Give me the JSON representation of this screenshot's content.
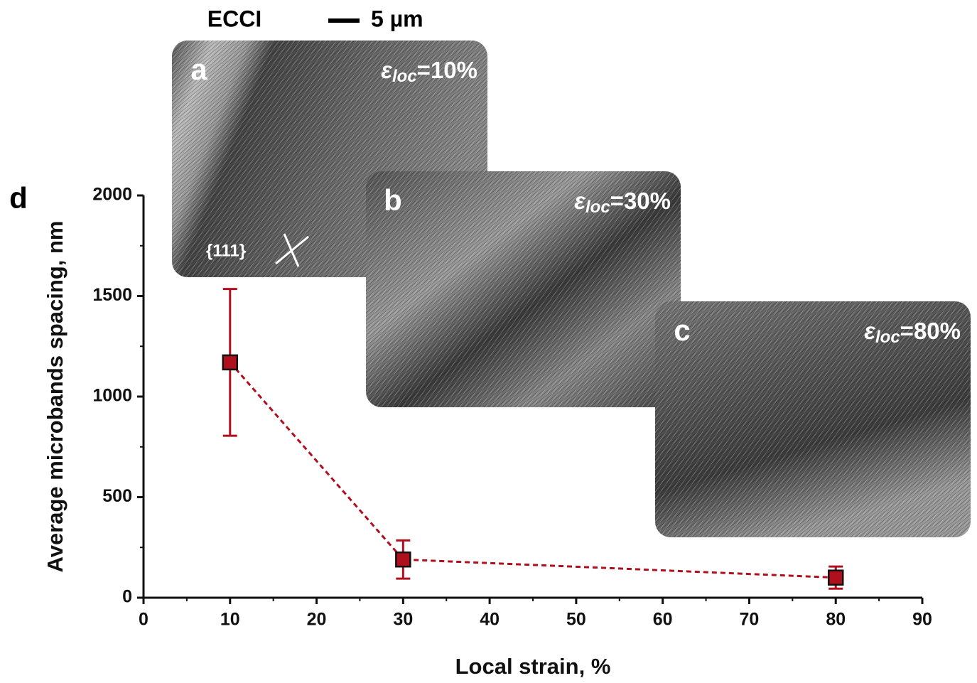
{
  "chart_data": {
    "type": "errorbar-line",
    "panel_label": "d",
    "header": {
      "technique": "ECCI",
      "scale_bar": "5 µm"
    },
    "x_label": "Local strain, %",
    "y_label": "Average microbands spacing, nm",
    "x": [
      10,
      30,
      80
    ],
    "values": [
      1170,
      190,
      100
    ],
    "errors": [
      365,
      95,
      55
    ],
    "color": "#b0101e",
    "marker_edge": "#111111",
    "line_style": "dashed",
    "xlim": [
      0,
      90
    ],
    "ylim": [
      0,
      2000
    ],
    "xticks": [
      0,
      10,
      20,
      30,
      40,
      50,
      60,
      70,
      80,
      90
    ],
    "yticks": [
      0,
      500,
      1000,
      1500,
      2000
    ],
    "xminorticks": [
      5,
      15,
      25,
      35,
      45,
      55,
      65,
      75,
      85
    ],
    "yminorticks": [
      250,
      750,
      1250,
      1750
    ],
    "insets": [
      {
        "letter": "a",
        "symbol": "ε",
        "subscript": "loc",
        "value": "=10%",
        "plane": "{111}"
      },
      {
        "letter": "b",
        "symbol": "ε",
        "subscript": "loc",
        "value": "=30%"
      },
      {
        "letter": "c",
        "symbol": "ε",
        "subscript": "loc",
        "value": "=80%"
      }
    ]
  }
}
